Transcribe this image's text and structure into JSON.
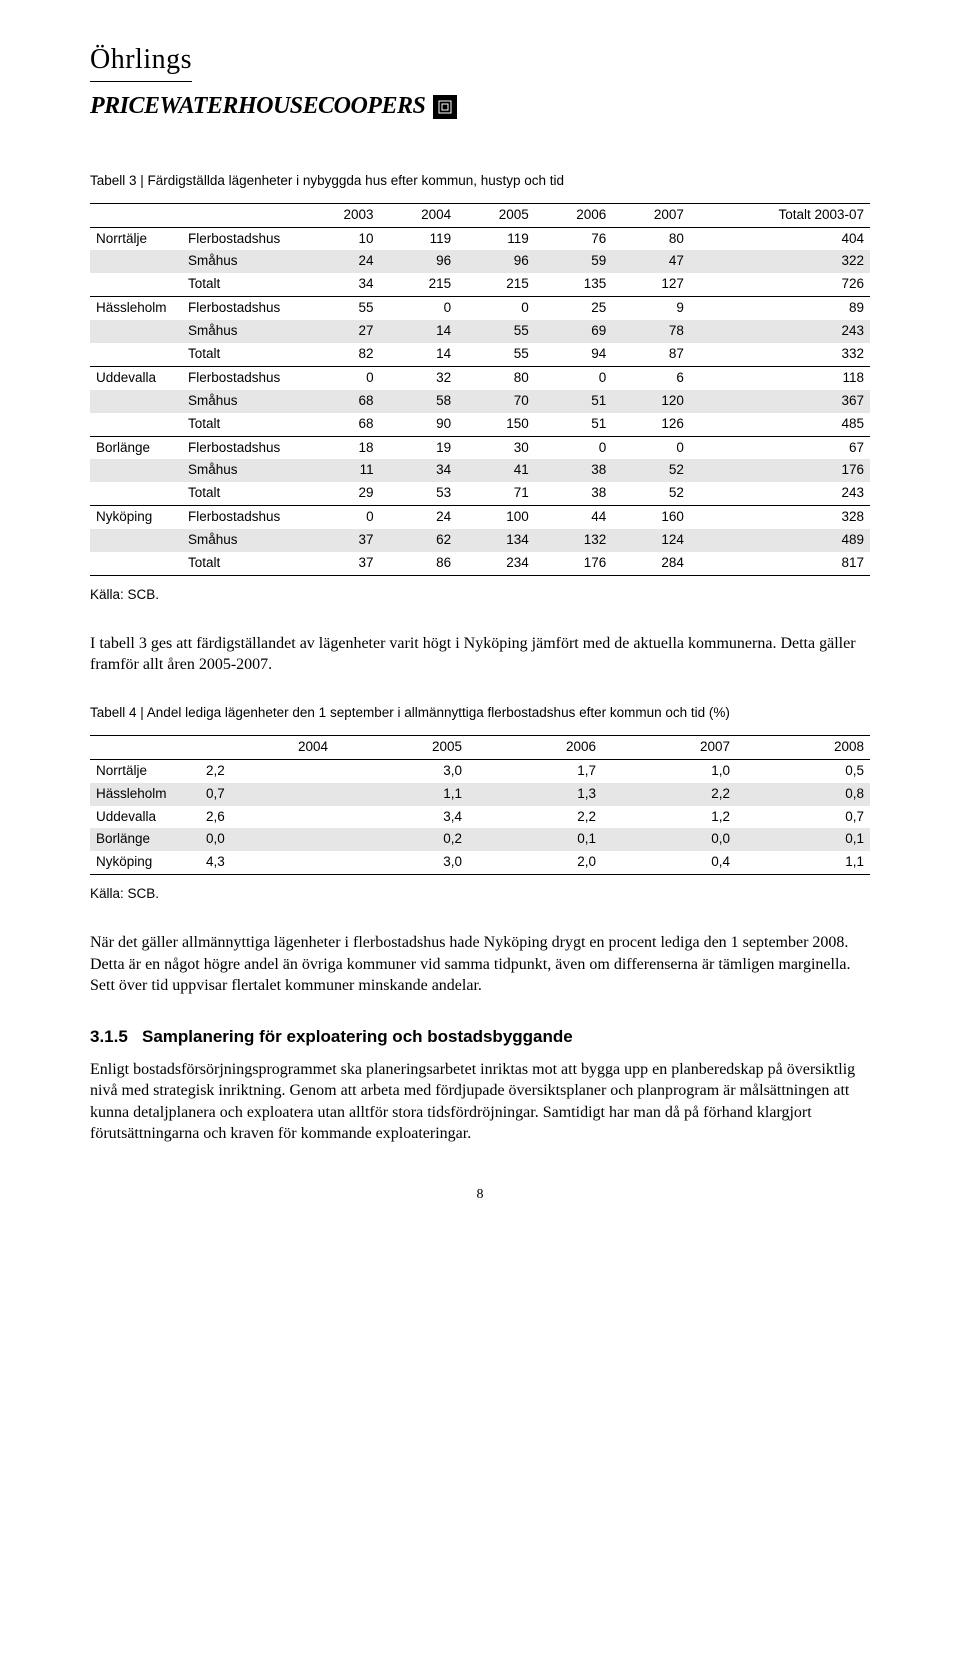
{
  "logo": {
    "line1": "Öhrlings",
    "line2": "PRICEWATERHOUSECOOPERS",
    "box": "⬚"
  },
  "table3": {
    "caption": "Tabell 3 | Färdigställda lägenheter i nybyggda hus efter kommun, hustyp och tid",
    "headers": [
      "",
      "",
      "2003",
      "2004",
      "2005",
      "2006",
      "2007",
      "Totalt 2003-07"
    ],
    "groups": [
      {
        "kommun": "Norrtälje",
        "rows": [
          {
            "typ": "Flerbostadshus",
            "v": [
              "10",
              "119",
              "119",
              "76",
              "80",
              "404"
            ],
            "shade": false
          },
          {
            "typ": "Småhus",
            "v": [
              "24",
              "96",
              "96",
              "59",
              "47",
              "322"
            ],
            "shade": true
          },
          {
            "typ": "Totalt",
            "v": [
              "34",
              "215",
              "215",
              "135",
              "127",
              "726"
            ],
            "shade": false
          }
        ]
      },
      {
        "kommun": "Hässleholm",
        "rows": [
          {
            "typ": "Flerbostadshus",
            "v": [
              "55",
              "0",
              "0",
              "25",
              "9",
              "89"
            ],
            "shade": false
          },
          {
            "typ": "Småhus",
            "v": [
              "27",
              "14",
              "55",
              "69",
              "78",
              "243"
            ],
            "shade": true
          },
          {
            "typ": "Totalt",
            "v": [
              "82",
              "14",
              "55",
              "94",
              "87",
              "332"
            ],
            "shade": false
          }
        ]
      },
      {
        "kommun": "Uddevalla",
        "rows": [
          {
            "typ": "Flerbostadshus",
            "v": [
              "0",
              "32",
              "80",
              "0",
              "6",
              "118"
            ],
            "shade": false
          },
          {
            "typ": "Småhus",
            "v": [
              "68",
              "58",
              "70",
              "51",
              "120",
              "367"
            ],
            "shade": true
          },
          {
            "typ": "Totalt",
            "v": [
              "68",
              "90",
              "150",
              "51",
              "126",
              "485"
            ],
            "shade": false
          }
        ]
      },
      {
        "kommun": "Borlänge",
        "rows": [
          {
            "typ": "Flerbostadshus",
            "v": [
              "18",
              "19",
              "30",
              "0",
              "0",
              "67"
            ],
            "shade": false
          },
          {
            "typ": "Småhus",
            "v": [
              "11",
              "34",
              "41",
              "38",
              "52",
              "176"
            ],
            "shade": true
          },
          {
            "typ": "Totalt",
            "v": [
              "29",
              "53",
              "71",
              "38",
              "52",
              "243"
            ],
            "shade": false
          }
        ]
      },
      {
        "kommun": "Nyköping",
        "rows": [
          {
            "typ": "Flerbostadshus",
            "v": [
              "0",
              "24",
              "100",
              "44",
              "160",
              "328"
            ],
            "shade": false
          },
          {
            "typ": "Småhus",
            "v": [
              "37",
              "62",
              "134",
              "132",
              "124",
              "489"
            ],
            "shade": true
          },
          {
            "typ": "Totalt",
            "v": [
              "37",
              "86",
              "234",
              "176",
              "284",
              "817"
            ],
            "shade": false
          }
        ]
      }
    ],
    "source": "Källa: SCB."
  },
  "para1": "I tabell 3 ges att färdigställandet av lägenheter varit högt i Nyköping jämfört med de aktuella kommunerna. Detta gäller framför allt åren 2005-2007.",
  "table4": {
    "caption": "Tabell 4 | Andel lediga lägenheter den 1 september i allmännyttiga flerbostadshus efter kommun och tid (%)",
    "headers": [
      "",
      "2004",
      "2005",
      "2006",
      "2007",
      "2008"
    ],
    "rows": [
      {
        "k": "Norrtälje",
        "v": [
          "2,2",
          "3,0",
          "1,7",
          "1,0",
          "0,5"
        ],
        "shade": false
      },
      {
        "k": "Hässleholm",
        "v": [
          "0,7",
          "1,1",
          "1,3",
          "2,2",
          "0,8"
        ],
        "shade": true
      },
      {
        "k": "Uddevalla",
        "v": [
          "2,6",
          "3,4",
          "2,2",
          "1,2",
          "0,7"
        ],
        "shade": false
      },
      {
        "k": "Borlänge",
        "v": [
          "0,0",
          "0,2",
          "0,1",
          "0,0",
          "0,1"
        ],
        "shade": true
      },
      {
        "k": "Nyköping",
        "v": [
          "4,3",
          "3,0",
          "2,0",
          "0,4",
          "1,1"
        ],
        "shade": false
      }
    ],
    "source": "Källa: SCB."
  },
  "para2": "När det gäller allmännyttiga lägenheter i flerbostadshus hade Nyköping drygt en procent lediga den 1 september 2008. Detta är en något högre andel än övriga kommuner vid samma tidpunkt, även om differenserna är tämligen marginella. Sett över tid uppvisar flertalet kommuner minskande andelar.",
  "section": {
    "num": "3.1.5",
    "title": "Samplanering för exploatering och bostadsbyggande"
  },
  "para3": "Enligt bostadsförsörjningsprogrammet ska planeringsarbetet inriktas mot att bygga upp en planberedskap på översiktlig nivå med strategisk inriktning. Genom att arbeta med fördjupade översiktsplaner och planprogram är målsättningen att kunna detaljplanera och exploatera utan alltför stora tidsfördröjningar. Samtidigt har man då på förhand klargjort förutsättningarna och kraven för kommande exploateringar.",
  "pageNumber": "8"
}
